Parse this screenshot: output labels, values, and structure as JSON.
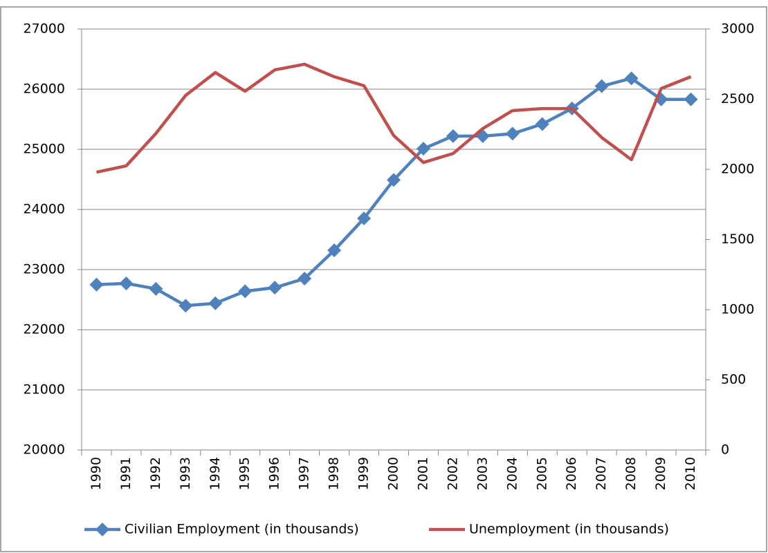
{
  "chart_data": {
    "type": "line",
    "categories": [
      "1990",
      "1991",
      "1992",
      "1993",
      "1994",
      "1995",
      "1996",
      "1997",
      "1998",
      "1999",
      "2000",
      "2001",
      "2002",
      "2003",
      "2004",
      "2005",
      "2006",
      "2007",
      "2008",
      "2009",
      "2010"
    ],
    "series": [
      {
        "name": "Civilian Employment (in thousands)",
        "color": "#4f81bd",
        "marker": "diamond",
        "values": [
          22750,
          22770,
          22680,
          22400,
          22440,
          22640,
          22700,
          22850,
          23320,
          23850,
          24490,
          25010,
          25220,
          25220,
          25260,
          25420,
          25680,
          26050,
          26180,
          25830,
          25830
        ]
      },
      {
        "name": "Unemployment (in thousands)",
        "color": "#c0504d",
        "axis": "y2",
        "values": [
          1980,
          2025,
          2256,
          2527,
          2690,
          2557,
          2709,
          2749,
          2660,
          2596,
          2241,
          2049,
          2113,
          2291,
          2419,
          2433,
          2433,
          2227,
          2069,
          2576,
          2660
        ]
      }
    ],
    "ylim": [
      20000,
      27000
    ],
    "yticks": [
      20000,
      21000,
      22000,
      23000,
      24000,
      25000,
      26000,
      27000
    ],
    "y2lim": [
      0,
      3000
    ],
    "y2ticks": [
      0,
      500,
      1000,
      1500,
      2000,
      2500,
      3000
    ],
    "grid": true,
    "legend": "bottom"
  }
}
